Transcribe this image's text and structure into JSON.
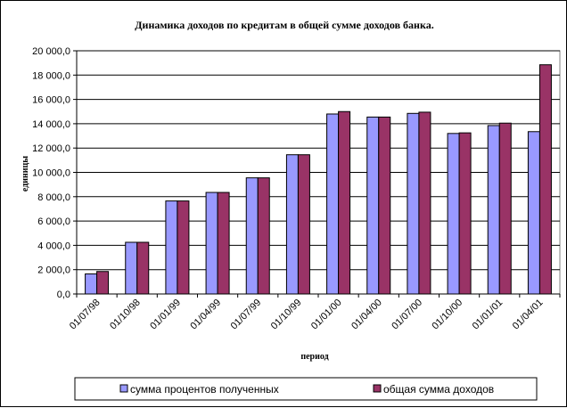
{
  "chart_data": {
    "type": "bar",
    "title": "Динамика доходов по кредитам в общей сумме доходов банка.",
    "xlabel": "период",
    "ylabel": "единицы",
    "ylim": [
      0,
      20000
    ],
    "y_ticks": [
      "0,0",
      "2 000,0",
      "4 000,0",
      "6 000,0",
      "8 000,0",
      "10 000,0",
      "12 000,0",
      "14 000,0",
      "16 000,0",
      "18 000,0",
      "20 000,0"
    ],
    "categories": [
      "01/07/98",
      "01/10/98",
      "01/01/99",
      "01/04/99",
      "01/07/99",
      "01/10/99",
      "01/01/00",
      "01/04/00",
      "01/07/00",
      "01/10/00",
      "01/01/01",
      "01/04/01"
    ],
    "series": [
      {
        "name": "сумма процентов полученных",
        "color": "#9999ff",
        "values": [
          1650,
          4250,
          7650,
          8350,
          9550,
          11450,
          14800,
          14550,
          14850,
          13200,
          13850,
          13350
        ]
      },
      {
        "name": "общая сумма доходов",
        "color": "#993366",
        "values": [
          1850,
          4250,
          7650,
          8350,
          9550,
          11450,
          15000,
          14550,
          14950,
          13250,
          14050,
          18850
        ]
      }
    ],
    "grid": true,
    "legend_position": "bottom"
  }
}
